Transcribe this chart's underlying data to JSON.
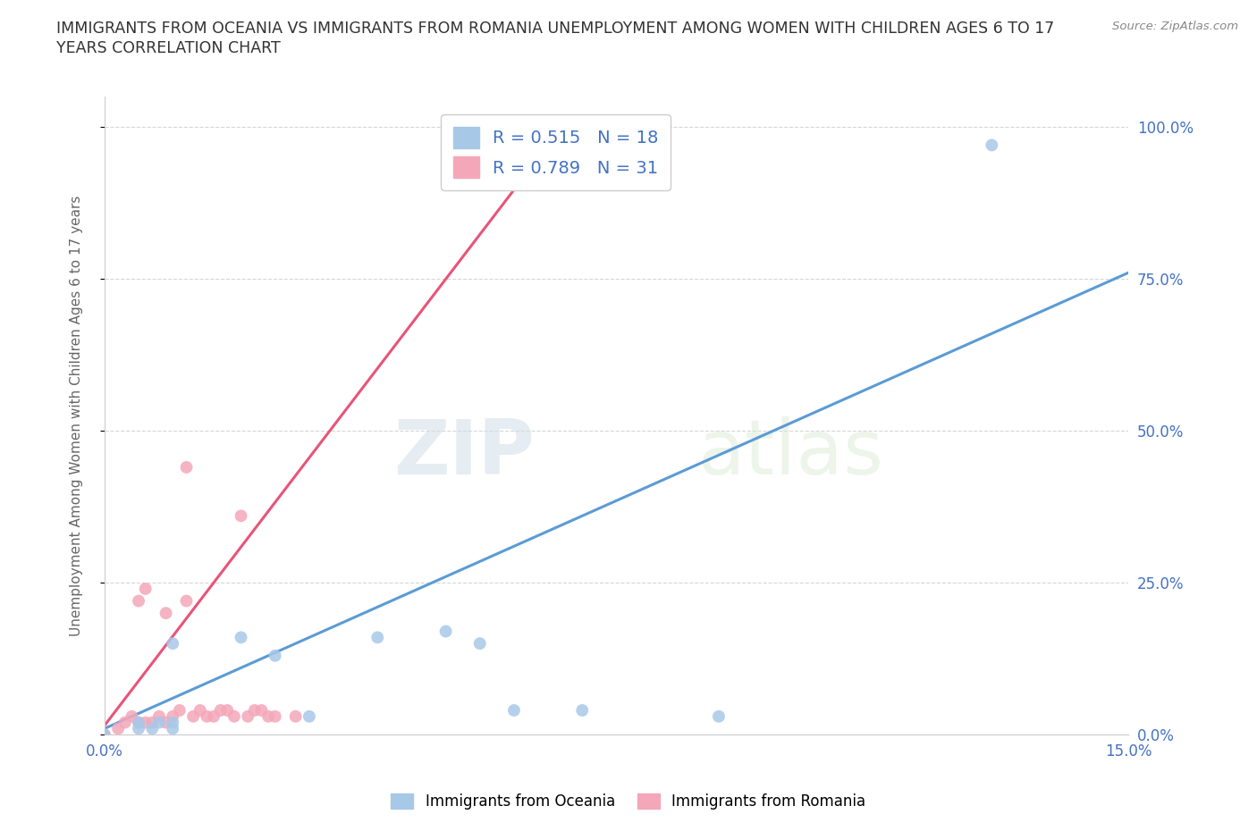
{
  "title": "IMMIGRANTS FROM OCEANIA VS IMMIGRANTS FROM ROMANIA UNEMPLOYMENT AMONG WOMEN WITH CHILDREN AGES 6 TO 17\nYEARS CORRELATION CHART",
  "source_text": "Source: ZipAtlas.com",
  "ylabel": "Unemployment Among Women with Children Ages 6 to 17 years",
  "r_oceania": 0.515,
  "n_oceania": 18,
  "r_romania": 0.789,
  "n_romania": 31,
  "legend_label_oceania": "Immigrants from Oceania",
  "legend_label_romania": "Immigrants from Romania",
  "color_oceania": "#a8c8e8",
  "color_romania": "#f4a7b9",
  "line_color_oceania": "#5b9bd5",
  "line_color_romania": "#e8547a",
  "text_color_blue": "#4472c4",
  "background_color": "#ffffff",
  "grid_color": "#cccccc",
  "watermark_zip": "ZIP",
  "watermark_atlas": "atlas",
  "yticks_labels": [
    "0.0%",
    "25.0%",
    "50.0%",
    "75.0%",
    "100.0%"
  ],
  "yticks_values": [
    0.0,
    0.25,
    0.5,
    0.75,
    1.0
  ],
  "xmin": 0.0,
  "xmax": 0.15,
  "ymin": 0.0,
  "ymax": 1.05,
  "oceania_x": [
    0.0,
    0.005,
    0.005,
    0.007,
    0.008,
    0.01,
    0.01,
    0.01,
    0.02,
    0.025,
    0.03,
    0.04,
    0.05,
    0.055,
    0.06,
    0.07,
    0.09,
    0.13
  ],
  "oceania_y": [
    0.0,
    0.01,
    0.02,
    0.01,
    0.02,
    0.01,
    0.02,
    0.15,
    0.16,
    0.13,
    0.03,
    0.16,
    0.17,
    0.15,
    0.04,
    0.04,
    0.03,
    0.97
  ],
  "romania_x": [
    0.0,
    0.002,
    0.003,
    0.004,
    0.005,
    0.005,
    0.006,
    0.006,
    0.007,
    0.008,
    0.009,
    0.009,
    0.01,
    0.011,
    0.012,
    0.012,
    0.013,
    0.014,
    0.015,
    0.016,
    0.017,
    0.018,
    0.019,
    0.02,
    0.021,
    0.022,
    0.023,
    0.024,
    0.025,
    0.028,
    0.065
  ],
  "romania_y": [
    0.0,
    0.01,
    0.02,
    0.03,
    0.02,
    0.22,
    0.02,
    0.24,
    0.02,
    0.03,
    0.02,
    0.2,
    0.03,
    0.04,
    0.22,
    0.44,
    0.03,
    0.04,
    0.03,
    0.03,
    0.04,
    0.04,
    0.03,
    0.36,
    0.03,
    0.04,
    0.04,
    0.03,
    0.03,
    0.03,
    0.95
  ],
  "oceania_line_x": [
    0.0,
    0.15
  ],
  "oceania_line_y": [
    0.01,
    0.76
  ],
  "romania_line_x": [
    0.0,
    0.065
  ],
  "romania_line_y": [
    0.015,
    0.97
  ]
}
